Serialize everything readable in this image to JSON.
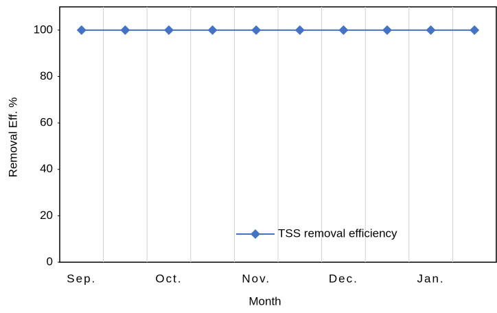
{
  "chart_data": {
    "type": "line",
    "x_label": "Month",
    "y_label": "Removal Eff. %",
    "categories": [
      "Sep.",
      null,
      "Oct.",
      null,
      "Nov.",
      null,
      "Dec.",
      null,
      "Jan.",
      null
    ],
    "series": [
      {
        "name": "TSS removal efficiency",
        "color": "#4472c4",
        "values": [
          100,
          100,
          100,
          100,
          100,
          100,
          100,
          100,
          100,
          100
        ]
      }
    ],
    "ylim": [
      0,
      110
    ],
    "yticks": [
      0,
      20,
      40,
      60,
      80,
      100
    ],
    "grid": "vertical",
    "legend": "lower right"
  }
}
